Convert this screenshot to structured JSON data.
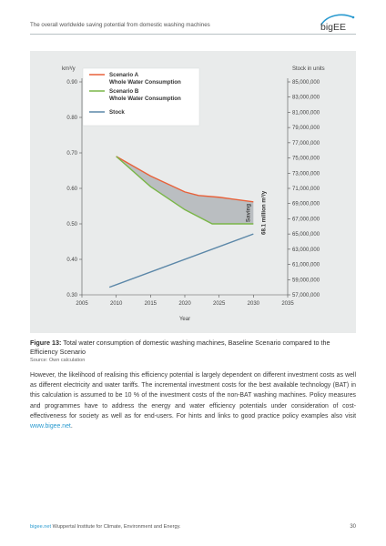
{
  "header": {
    "title": "The overall worldwide saving potential from domestic washing machines",
    "logo_text": "bigEE",
    "accent_color": "#2b9bd0"
  },
  "chart_data": {
    "type": "line",
    "xlabel": "Year",
    "ylabel_left": "km³/y",
    "ylabel_right": "Stock in units",
    "xlim": [
      2005,
      2035
    ],
    "ylim_left": [
      0.3,
      0.9
    ],
    "ylim_right": [
      57000000,
      85000000
    ],
    "x_ticks": [
      2005,
      2010,
      2015,
      2020,
      2025,
      2030,
      2035
    ],
    "left_ticks": [
      0.3,
      0.4,
      0.5,
      0.6,
      0.7,
      0.8,
      0.9
    ],
    "left_tick_labels": [
      "0.30",
      "0.40",
      "0.50",
      "0.60",
      "0.70",
      "0.80",
      "0.90"
    ],
    "right_ticks": [
      57000000,
      59000000,
      61000000,
      63000000,
      65000000,
      67000000,
      69000000,
      71000000,
      73000000,
      75000000,
      77000000,
      79000000,
      81000000,
      83000000,
      85000000
    ],
    "right_tick_labels": [
      "57,000,000",
      "59,000,000",
      "61,000,000",
      "63,000,000",
      "65,000,000",
      "67,000,000",
      "69,000,000",
      "71,000,000",
      "73,000,000",
      "75,000,000",
      "77,000,000",
      "79,000,000",
      "81,000,000",
      "83,000,000",
      "85,000,000"
    ],
    "series": [
      {
        "name": "Scenario A\nWhole Water Consumption",
        "axis": "left",
        "color": "#e8613a",
        "x": [
          2010,
          2015,
          2020,
          2022,
          2025,
          2030
        ],
        "y": [
          0.69,
          0.635,
          0.59,
          0.58,
          0.575,
          0.562
        ]
      },
      {
        "name": "Scenario B\nWhole Water Consumption",
        "axis": "left",
        "color": "#7ab648",
        "x": [
          2010,
          2015,
          2020,
          2024,
          2025,
          2030
        ],
        "y": [
          0.69,
          0.605,
          0.54,
          0.5,
          0.5,
          0.5
        ]
      },
      {
        "name": "Stock",
        "axis": "right",
        "color": "#5b87a8",
        "x": [
          2009,
          2030
        ],
        "y": [
          58000000,
          65000000
        ]
      }
    ],
    "saving_label": "Saving",
    "saving_value": "68.1 million m³/y",
    "saving_fill": "#b5b9bc",
    "legend_position": "top-left",
    "grid": false
  },
  "caption": {
    "label": "Figure 13:",
    "text": " Total water consumption of domestic washing machines, Baseline Scenario compared to the Efficiency Scenario"
  },
  "source": "Source: Own calculation",
  "body": {
    "text": "However, the likelihood of realising this efficiency potential is largely dependent on different investment costs as well as different electricity and water tariffs. The incremental investment costs for the best available technology (BAT) in this calculation is assumed to be 10 % of the investment costs of the non-BAT washing machines. Policy measures and programmes have to address the energy and water efficiency potentials under consideration of cost-effectiveness for society as well as for end-users. For hints and links to good practice policy examples also visit ",
    "link": "www.bigee.net",
    "end": "."
  },
  "footer": {
    "site": "bigee.net",
    "org": "  Wuppertal Institute for Climate, Environment and Energy."
  },
  "page_number": "30"
}
